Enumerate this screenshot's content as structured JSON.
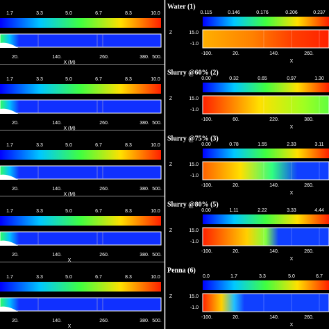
{
  "panels": [
    {
      "left": {
        "scale_ticks": [
          "1.7",
          "3.3",
          "5.0",
          "6.7",
          "8.3",
          "10.0"
        ],
        "x_ticks": [
          "20.",
          "140.",
          "260.",
          "380.",
          "500."
        ],
        "x_label": "X (M)"
      },
      "right": {
        "title": "Water  (1)",
        "scale_ticks": [
          "0.115",
          "0.146",
          "0.176",
          "0.206",
          "0.237"
        ],
        "z_label": "Z",
        "z_ticks": [
          "15.0",
          "-1.0"
        ],
        "x_ticks": [
          "-100.",
          "20.",
          "140.",
          "260."
        ],
        "x_label": "X"
      }
    },
    {
      "left": {
        "scale_ticks": [
          "1.7",
          "3.3",
          "5.0",
          "6.7",
          "8.3",
          "10.0"
        ],
        "x_ticks": [
          "20.",
          "140.",
          "260.",
          "380.",
          "500."
        ],
        "x_label": "X (M)"
      },
      "right": {
        "title": "Slurry @60%  (2)",
        "scale_ticks": [
          "0.00",
          "0.32",
          "0.65",
          "0.97",
          "1.30"
        ],
        "z_label": "Z",
        "z_ticks": [
          "15.0",
          "-1.0"
        ],
        "x_ticks": [
          "-100.",
          "60.",
          "220.",
          "380."
        ],
        "x_label": "X"
      }
    },
    {
      "left": {
        "scale_ticks": [
          "1.7",
          "3.3",
          "5.0",
          "6.7",
          "8.3",
          "10.0"
        ],
        "x_ticks": [
          "20.",
          "140.",
          "260.",
          "380.",
          "500."
        ],
        "x_label": "X (M)"
      },
      "right": {
        "title": "Slurry @75%  (3)",
        "scale_ticks": [
          "0.00",
          "0.78",
          "1.55",
          "2.33",
          "3.11"
        ],
        "z_label": "Z",
        "z_ticks": [
          "15.0",
          "-1.0"
        ],
        "x_ticks": [
          "-100.",
          "20.",
          "140.",
          "260."
        ],
        "x_label": "X"
      }
    },
    {
      "left": {
        "scale_ticks": [
          "1.7",
          "3.3",
          "5.0",
          "6.7",
          "8.3",
          "10.0"
        ],
        "x_ticks": [
          "20.",
          "140.",
          "260.",
          "380.",
          "500."
        ],
        "x_label": "X"
      },
      "right": {
        "title": "Slurry @80%  (5)",
        "scale_ticks": [
          "0.00",
          "1.11",
          "2.22",
          "3.33",
          "4.44"
        ],
        "z_label": "Z",
        "z_ticks": [
          "15.0",
          "-1.0"
        ],
        "x_ticks": [
          "-100.",
          "20.",
          "140.",
          "260."
        ],
        "x_label": "X"
      }
    },
    {
      "left": {
        "scale_ticks": [
          "1.7",
          "3.3",
          "5.0",
          "6.7",
          "8.3",
          "10.0"
        ],
        "x_ticks": [
          "20.",
          "140.",
          "260.",
          "380.",
          "500."
        ],
        "x_label": "X"
      },
      "right": {
        "title": "Penna  (6)",
        "scale_ticks": [
          "0.0",
          "1.7",
          "3.3",
          "5.0",
          "6.7"
        ],
        "z_label": "Z",
        "z_ticks": [
          "15.0",
          "-1.0"
        ],
        "x_ticks": [
          "-100.",
          "20.",
          "140.",
          "260."
        ],
        "x_label": "X"
      }
    }
  ]
}
